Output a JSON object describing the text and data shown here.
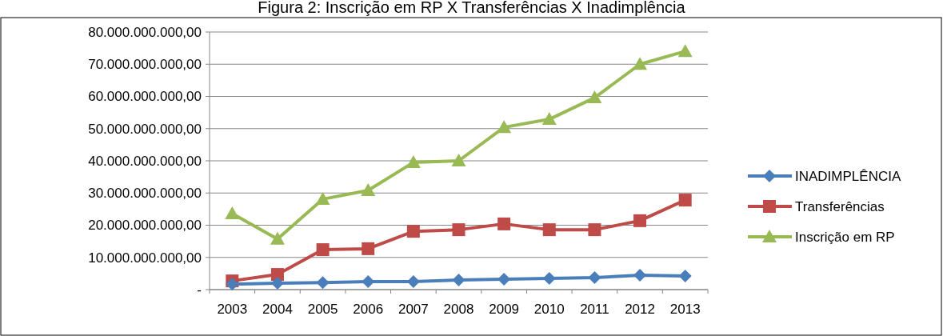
{
  "chart_data": {
    "type": "line",
    "title": "Figura 2: Inscrição em RP  X Transferências X Inadimplência",
    "categories": [
      "2003",
      "2004",
      "2005",
      "2006",
      "2007",
      "2008",
      "2009",
      "2010",
      "2011",
      "2012",
      "2013"
    ],
    "series": [
      {
        "name": "INADIMPLÊNCIA",
        "color": "#4a7ebb",
        "marker": "diamond",
        "values": [
          1700000000,
          2000000000,
          2200000000,
          2500000000,
          2500000000,
          3000000000,
          3200000000,
          3500000000,
          3700000000,
          4500000000,
          4200000000
        ]
      },
      {
        "name": "Transferências",
        "color": "#be4b48",
        "marker": "square",
        "values": [
          2700000000,
          4700000000,
          12400000000,
          12700000000,
          18100000000,
          18600000000,
          20400000000,
          18600000000,
          18600000000,
          21400000000,
          27800000000
        ]
      },
      {
        "name": "Inscrição em RP",
        "color": "#98b954",
        "marker": "triangle",
        "values": [
          23600000000,
          15700000000,
          28100000000,
          30800000000,
          39500000000,
          40000000000,
          50400000000,
          52900000000,
          59600000000,
          70000000000,
          74000000000
        ]
      }
    ],
    "ylim": [
      0,
      80000000000
    ],
    "yticks": [
      {
        "value": 0,
        "label": "-"
      },
      {
        "value": 10000000000,
        "label": "10.000.000.000,00"
      },
      {
        "value": 20000000000,
        "label": "20.000.000.000,00"
      },
      {
        "value": 30000000000,
        "label": "30.000.000.000,00"
      },
      {
        "value": 40000000000,
        "label": "40.000.000.000,00"
      },
      {
        "value": 50000000000,
        "label": "50.000.000.000,00"
      },
      {
        "value": 60000000000,
        "label": "60.000.000.000,00"
      },
      {
        "value": 70000000000,
        "label": "70.000.000.000,00"
      },
      {
        "value": 80000000000,
        "label": "80.000.000.000,00"
      }
    ],
    "grid": "y",
    "legend": "right"
  }
}
